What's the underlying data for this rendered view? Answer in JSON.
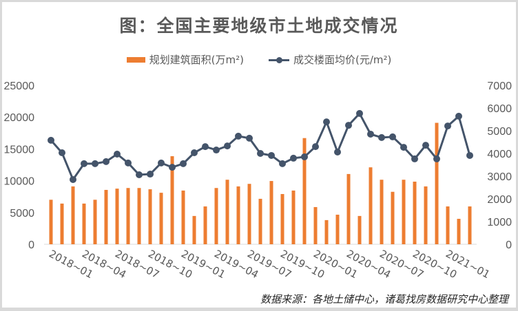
{
  "title": "图：全国主要地级市土地成交情况",
  "legend": {
    "bar_label": "规划建筑面积(万m²)",
    "line_label": "成交楼面均价(元/m²)"
  },
  "source": "数据来源：各地土储中心，诸葛找房数据研究中心整理",
  "colors": {
    "bar": "#ED7D31",
    "line": "#44546A",
    "axis_text": "#595959",
    "axis_line": "#D9D9D9"
  },
  "chart_data": {
    "type": "bar+line",
    "title": "图：全国主要地级市土地成交情况",
    "x": [
      "2018-01",
      "2018-02",
      "2018-03",
      "2018-04",
      "2018-05",
      "2018-06",
      "2018-07",
      "2018-08",
      "2018-09",
      "2018-10",
      "2018-11",
      "2018-12",
      "2019-01",
      "2019-02",
      "2019-03",
      "2019-04",
      "2019-05",
      "2019-06",
      "2019-07",
      "2019-08",
      "2019-09",
      "2019-10",
      "2019-11",
      "2019-12",
      "2020-01",
      "2020-02",
      "2020-03",
      "2020-04",
      "2020-05",
      "2020-06",
      "2020-07",
      "2020-08",
      "2020-09",
      "2020-10",
      "2020-11",
      "2020-12",
      "2021-01",
      "2021-02",
      "2021-03"
    ],
    "x_tick_labels": [
      "2018-01",
      "2018-04",
      "2018-07",
      "2018-10",
      "2019-01",
      "2019-04",
      "2019-07",
      "2019-10",
      "2020-01",
      "2020-04",
      "2020-07",
      "2020-10",
      "2021-01"
    ],
    "series": [
      {
        "name": "规划建筑面积(万m²)",
        "type": "bar",
        "axis": "left",
        "values": [
          7000,
          6400,
          9100,
          6400,
          7000,
          8550,
          8750,
          8850,
          8850,
          8650,
          8100,
          13850,
          8450,
          4450,
          5950,
          8850,
          10150,
          9100,
          9500,
          7150,
          9950,
          7900,
          8450,
          16700,
          5850,
          3800,
          4650,
          11050,
          4450,
          12100,
          10150,
          8250,
          10150,
          9850,
          9100,
          19100,
          5950,
          4000,
          5950
        ]
      },
      {
        "name": "成交楼面均价(元/m²)",
        "type": "line",
        "axis": "right",
        "values": [
          4580,
          4030,
          2850,
          3550,
          3550,
          3640,
          3970,
          3580,
          3060,
          3090,
          3580,
          3390,
          3550,
          4030,
          4300,
          4150,
          4330,
          4760,
          4670,
          4000,
          3910,
          3550,
          3790,
          3850,
          4300,
          5390,
          4060,
          5240,
          5760,
          4850,
          4700,
          4730,
          4270,
          3760,
          4360,
          3760,
          5210,
          5640,
          3910
        ]
      }
    ],
    "left_axis": {
      "label": "",
      "ylim": [
        0,
        25000
      ],
      "ticks": [
        0,
        5000,
        10000,
        15000,
        20000,
        25000
      ]
    },
    "right_axis": {
      "label": "",
      "ylim": [
        0,
        7000
      ],
      "ticks": [
        0,
        1000,
        2000,
        3000,
        4000,
        5000,
        6000,
        7000
      ]
    },
    "legend_position": "top",
    "grid": false
  }
}
